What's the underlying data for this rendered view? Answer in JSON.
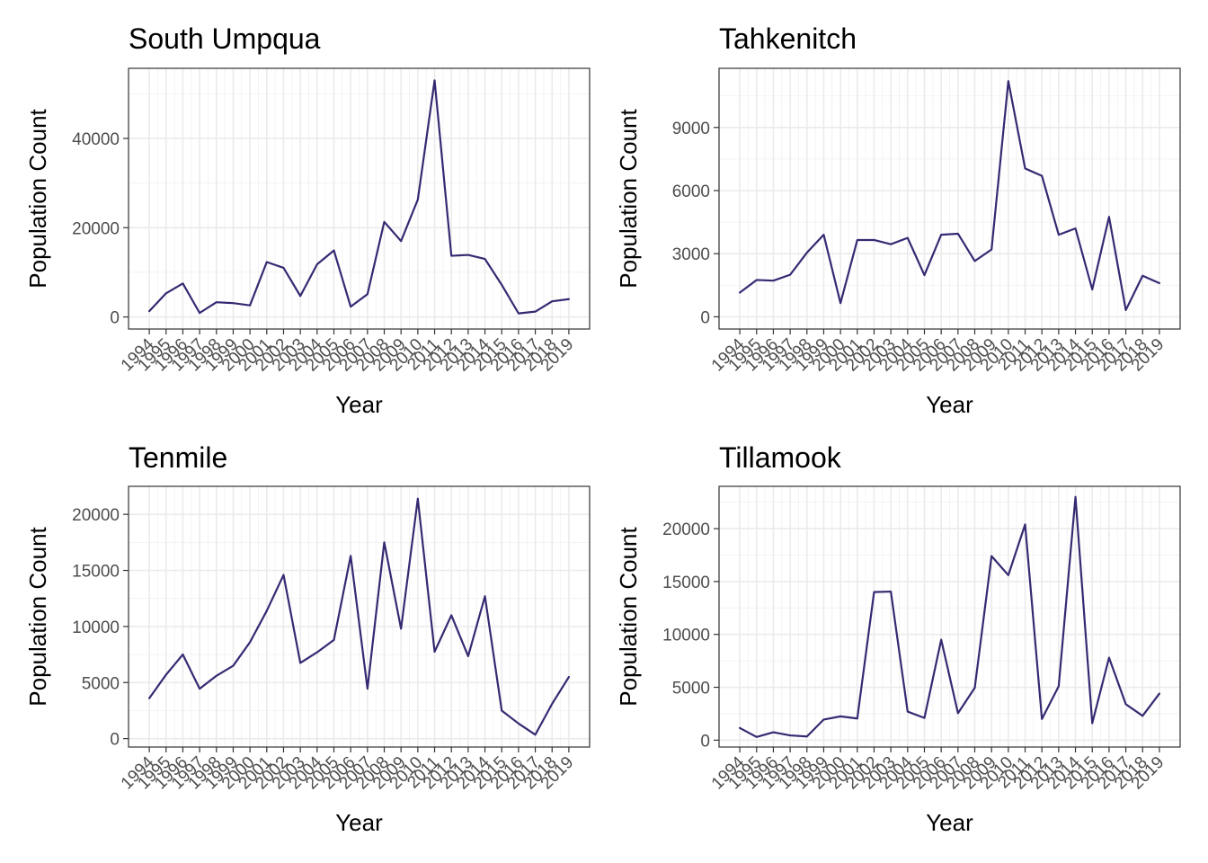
{
  "chart_data": [
    {
      "type": "line",
      "title": "South Umpqua",
      "xlabel": "Year",
      "ylabel": "Population Count",
      "x": [
        1994,
        1995,
        1996,
        1997,
        1998,
        1999,
        2000,
        2001,
        2002,
        2003,
        2004,
        2005,
        2006,
        2007,
        2008,
        2009,
        2010,
        2011,
        2012,
        2013,
        2014,
        2015,
        2016,
        2017,
        2018,
        2019
      ],
      "y": [
        1300,
        5300,
        7500,
        900,
        3300,
        3100,
        2600,
        12300,
        11000,
        4700,
        11800,
        14900,
        2300,
        5100,
        21300,
        17000,
        26300,
        53000,
        13700,
        13900,
        13000,
        7200,
        800,
        1200,
        3500,
        4000
      ],
      "ylim": [
        -2700,
        55700
      ],
      "yticks": [
        0,
        20000,
        40000
      ],
      "grid": true
    },
    {
      "type": "line",
      "title": "Tahkenitch",
      "xlabel": "Year",
      "ylabel": "Population Count",
      "x": [
        1994,
        1995,
        1996,
        1997,
        1998,
        1999,
        2000,
        2001,
        2002,
        2003,
        2004,
        2005,
        2006,
        2007,
        2008,
        2009,
        2010,
        2011,
        2012,
        2013,
        2014,
        2015,
        2016,
        2017,
        2018,
        2019
      ],
      "y": [
        1150,
        1750,
        1720,
        2000,
        3050,
        3900,
        650,
        3650,
        3650,
        3450,
        3750,
        1980,
        3900,
        3950,
        2650,
        3200,
        11200,
        7050,
        6700,
        3900,
        4200,
        1300,
        4750,
        320,
        1950,
        1600
      ],
      "ylim": [
        -580,
        11810
      ],
      "yticks": [
        0,
        3000,
        6000,
        9000
      ],
      "grid": true
    },
    {
      "type": "line",
      "title": "Tenmile",
      "xlabel": "Year",
      "ylabel": "Population Count",
      "x": [
        1994,
        1995,
        1996,
        1997,
        1998,
        1999,
        2000,
        2001,
        2002,
        2003,
        2004,
        2005,
        2006,
        2007,
        2008,
        2009,
        2010,
        2011,
        2012,
        2013,
        2014,
        2015,
        2016,
        2017,
        2018,
        2019
      ],
      "y": [
        3600,
        5700,
        7500,
        4450,
        5600,
        6500,
        8600,
        11400,
        14600,
        6750,
        7700,
        8800,
        16300,
        4450,
        17500,
        9800,
        21400,
        7750,
        11000,
        7350,
        12700,
        2500,
        1350,
        350,
        3100,
        5500
      ],
      "ylim": [
        -750,
        22500
      ],
      "yticks": [
        0,
        5000,
        10000,
        15000,
        20000
      ],
      "grid": true
    },
    {
      "type": "line",
      "title": "Tillamook",
      "xlabel": "Year",
      "ylabel": "Population Count",
      "x": [
        1994,
        1995,
        1996,
        1997,
        1998,
        1999,
        2000,
        2001,
        2002,
        2003,
        2004,
        2005,
        2006,
        2007,
        2008,
        2009,
        2010,
        2011,
        2012,
        2013,
        2014,
        2015,
        2016,
        2017,
        2018,
        2019
      ],
      "y": [
        1150,
        300,
        750,
        450,
        350,
        1950,
        2250,
        2050,
        14000,
        14050,
        2700,
        2100,
        9500,
        2550,
        4950,
        17400,
        15600,
        20400,
        2000,
        5100,
        23000,
        1600,
        7800,
        3400,
        2300,
        4400
      ],
      "ylim": [
        -650,
        24000
      ],
      "yticks": [
        0,
        5000,
        10000,
        15000,
        20000
      ],
      "grid": true
    }
  ],
  "colors": {
    "line": "#352a72",
    "grid": "#ebebeb",
    "border": "#333333",
    "tick_text": "#4d4d4d"
  }
}
